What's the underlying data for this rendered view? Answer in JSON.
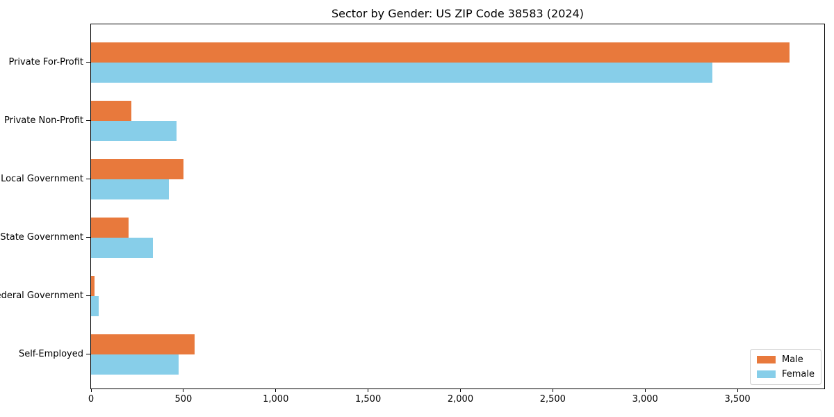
{
  "title": "Sector by Gender: US ZIP Code 38583 (2024)",
  "chart_data": {
    "type": "bar",
    "orientation": "horizontal",
    "title": "Sector by Gender: US ZIP Code 38583 (2024)",
    "categories": [
      "Private For-Profit",
      "Private Non-Profit",
      "Local Government",
      "State Government",
      "Federal Government",
      "Self-Employed"
    ],
    "series": [
      {
        "name": "Male",
        "color": "#e8793c",
        "values": [
          3780,
          217,
          501,
          205,
          19,
          559
        ]
      },
      {
        "name": "Female",
        "color": "#87cee9",
        "values": [
          3366,
          461,
          420,
          336,
          40,
          474
        ]
      }
    ],
    "xlabel": "",
    "ylabel": "",
    "xlim": [
      0,
      3970
    ],
    "xticks": [
      0,
      500,
      1000,
      1500,
      2000,
      2500,
      3000,
      3500
    ],
    "xtick_labels": [
      "0",
      "500",
      "1,000",
      "1,500",
      "2,000",
      "2,500",
      "3,000",
      "3,500"
    ],
    "grid": false,
    "legend_position": "lower right"
  },
  "colors": {
    "axis": "#000000",
    "legend_border": "#cccccc",
    "background": "#ffffff"
  }
}
